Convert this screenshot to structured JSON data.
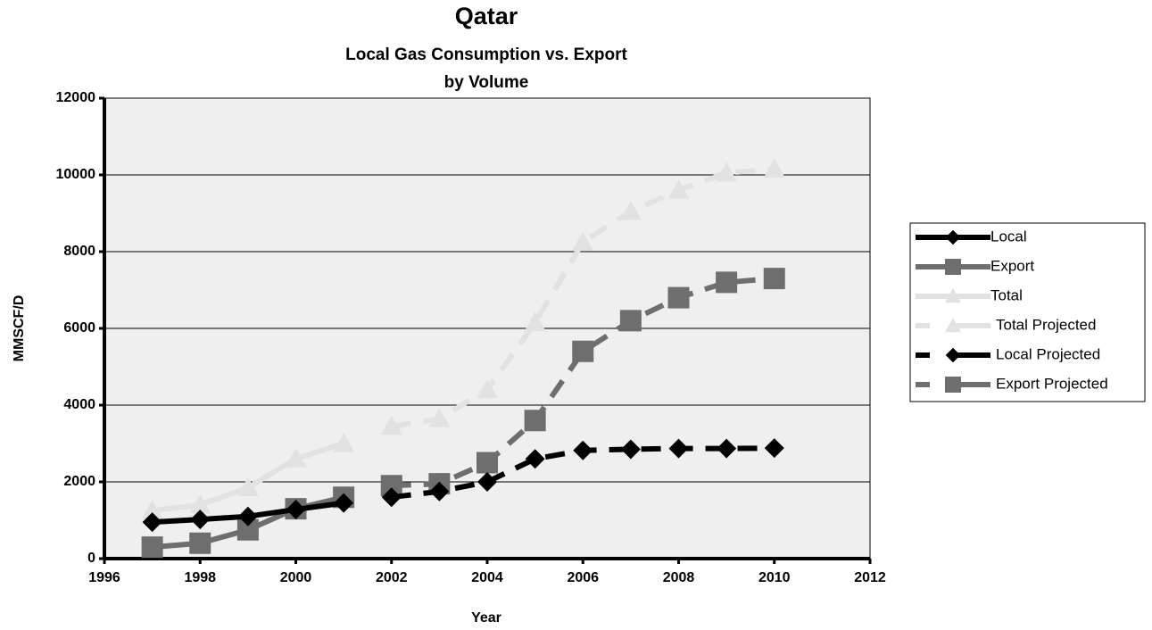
{
  "chart_data": {
    "type": "line",
    "title": "Qatar",
    "subtitle": [
      "Local Gas Consumption vs. Export",
      "by Volume"
    ],
    "x_label": "Year",
    "y_label": "MMSCF/D",
    "xlim": [
      1996,
      2012
    ],
    "xticks": [
      1996,
      1998,
      2000,
      2002,
      2004,
      2006,
      2008,
      2010,
      2012
    ],
    "ylim": [
      0,
      12000
    ],
    "yticks": [
      0,
      2000,
      4000,
      6000,
      8000,
      10000,
      12000
    ],
    "grid": true,
    "legend": "right",
    "series": [
      {
        "name": "Local",
        "color": "#000000",
        "style": "solid",
        "marker": "diamond",
        "x": [
          1997,
          1998,
          1999,
          2000,
          2001
        ],
        "values": [
          950,
          1020,
          1100,
          1280,
          1450
        ]
      },
      {
        "name": "Export",
        "color": "#6e6e6e",
        "style": "solid",
        "marker": "square",
        "x": [
          1997,
          1998,
          1999,
          2000,
          2001
        ],
        "values": [
          300,
          400,
          750,
          1300,
          1600
        ]
      },
      {
        "name": "Total",
        "color": "#e2e2e2",
        "style": "solid",
        "marker": "triangle",
        "x": [
          1997,
          1998,
          1999,
          2000,
          2001
        ],
        "values": [
          1250,
          1400,
          1850,
          2600,
          3000
        ]
      },
      {
        "name": "Total Projected",
        "color": "#e2e2e2",
        "style": "dashed",
        "marker": "triangle",
        "x": [
          2002,
          2003,
          2004,
          2005,
          2006,
          2007,
          2008,
          2009,
          2010
        ],
        "values": [
          3450,
          3650,
          4400,
          6150,
          8250,
          9050,
          9600,
          10050,
          10150
        ]
      },
      {
        "name": "Local Projected",
        "color": "#000000",
        "style": "dashed",
        "marker": "diamond",
        "x": [
          2002,
          2003,
          2004,
          2005,
          2006,
          2007,
          2008,
          2009,
          2010
        ],
        "values": [
          1600,
          1750,
          2000,
          2600,
          2820,
          2850,
          2870,
          2870,
          2880
        ]
      },
      {
        "name": "Export Projected",
        "color": "#6e6e6e",
        "style": "dashed",
        "marker": "square",
        "x": [
          2002,
          2003,
          2004,
          2005,
          2006,
          2007,
          2008,
          2009,
          2010
        ],
        "values": [
          1900,
          1950,
          2500,
          3600,
          5400,
          6200,
          6800,
          7200,
          7300
        ]
      }
    ]
  }
}
